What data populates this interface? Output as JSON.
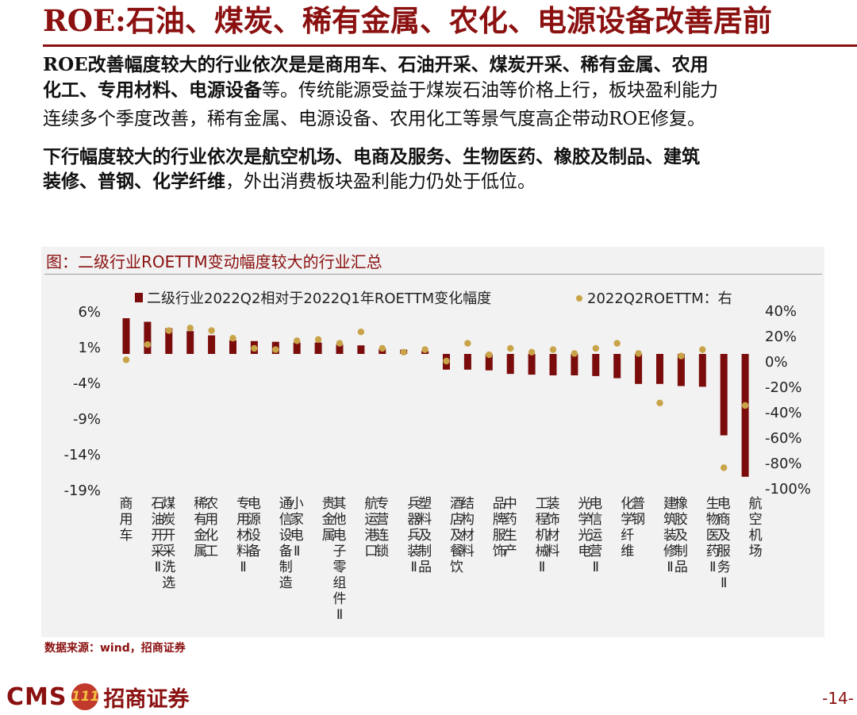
{
  "header": {
    "title": "ROE:石油、煤炭、稀有金属、农化、电源设备改善居前"
  },
  "paragraph1": {
    "line1_bold": "ROE改善幅度较大的行业依次是是商用车、石油开采、煤炭开采、稀有金属、农用",
    "line2_bold": "化工、专用材料、电源设备",
    "line2_rest": "等。传统能源受益于煤炭石油等价格上行，板块盈利能力",
    "line3": "连续多个季度改善，稀有金属、电源设备、农用化工等景气度高企带动ROE修复。"
  },
  "paragraph2": {
    "line1_bold": "下行幅度较大的行业依次是航空机场、电商及服务、生物医药、橡胶及制品、建筑",
    "line2_bold": "装修、普钢、化学纤维",
    "line2_rest": "，外出消费板块盈利能力仍处于低位。"
  },
  "chart_title": "图：二级行业ROETTM变动幅度较大的行业汇总",
  "source": "数据来源：wind，招商证券",
  "footer": {
    "logo_text": "CMS",
    "logo_badge": "111",
    "logo_cn": "招商证券",
    "page_number": "-14-"
  },
  "colors": {
    "bar": "#7b0c0c",
    "dot": "#c8a348",
    "accent": "#8b1010"
  },
  "chart_data": {
    "type": "bar",
    "legend": {
      "bar_label": "二级行业2022Q2相对于2022Q1年ROETTM变化幅度",
      "dot_label": "2022Q2ROETTM：右"
    },
    "categories": [
      "商用车",
      "石油开采Ⅱ",
      "煤炭开采洗选",
      "稀有金属",
      "农用化工",
      "专用材料Ⅱ",
      "电源设备",
      "通信设备制造",
      "小家电Ⅱ",
      "贵金属",
      "其他电子零组件Ⅱ",
      "航运港口",
      "专营连锁",
      "兵器兵装Ⅱ",
      "塑料及制品",
      "酒店及餐饮",
      "结构材料",
      "品牌服饰",
      "中药生产",
      "工程机械Ⅱ",
      "装饰材料",
      "光学光电",
      "电信运营Ⅱ",
      "化学纤维",
      "普钢",
      "建筑装修Ⅱ",
      "橡胶及制品",
      "生物医药Ⅱ",
      "电商及服务Ⅱ",
      "航空机场"
    ],
    "series": [
      {
        "name": "二级行业2022Q2相对于2022Q1年ROETTM变化幅度",
        "axis": "left",
        "values": [
          5.0,
          4.5,
          3.6,
          3.2,
          2.6,
          1.9,
          1.8,
          1.7,
          1.6,
          1.6,
          1.3,
          1.2,
          0.7,
          0.6,
          0.4,
          -2.2,
          -2.2,
          -2.3,
          -2.8,
          -2.9,
          -3.0,
          -3.0,
          -3.1,
          -3.4,
          -4.2,
          -4.2,
          -4.5,
          -4.6,
          -11.4,
          -17.2
        ]
      },
      {
        "name": "2022Q2ROETTM：右",
        "axis": "right",
        "values": [
          1,
          13,
          24,
          26,
          24,
          18,
          10,
          9,
          16,
          17,
          14,
          23,
          10,
          7,
          9,
          0,
          14,
          5,
          10,
          7,
          9,
          6,
          10,
          14,
          6,
          -33,
          4,
          9,
          -84,
          -35
        ]
      }
    ],
    "y_left": {
      "ticks": [
        "6%",
        "1%",
        "-4%",
        "-9%",
        "-14%",
        "-19%"
      ],
      "range": [
        -19,
        6
      ]
    },
    "y_right": {
      "ticks": [
        "40%",
        "20%",
        "0%",
        "-20%",
        "-40%",
        "-60%",
        "-80%",
        "-100%"
      ],
      "range": [
        -100,
        40
      ]
    },
    "grid": false,
    "legend_position": "top"
  }
}
